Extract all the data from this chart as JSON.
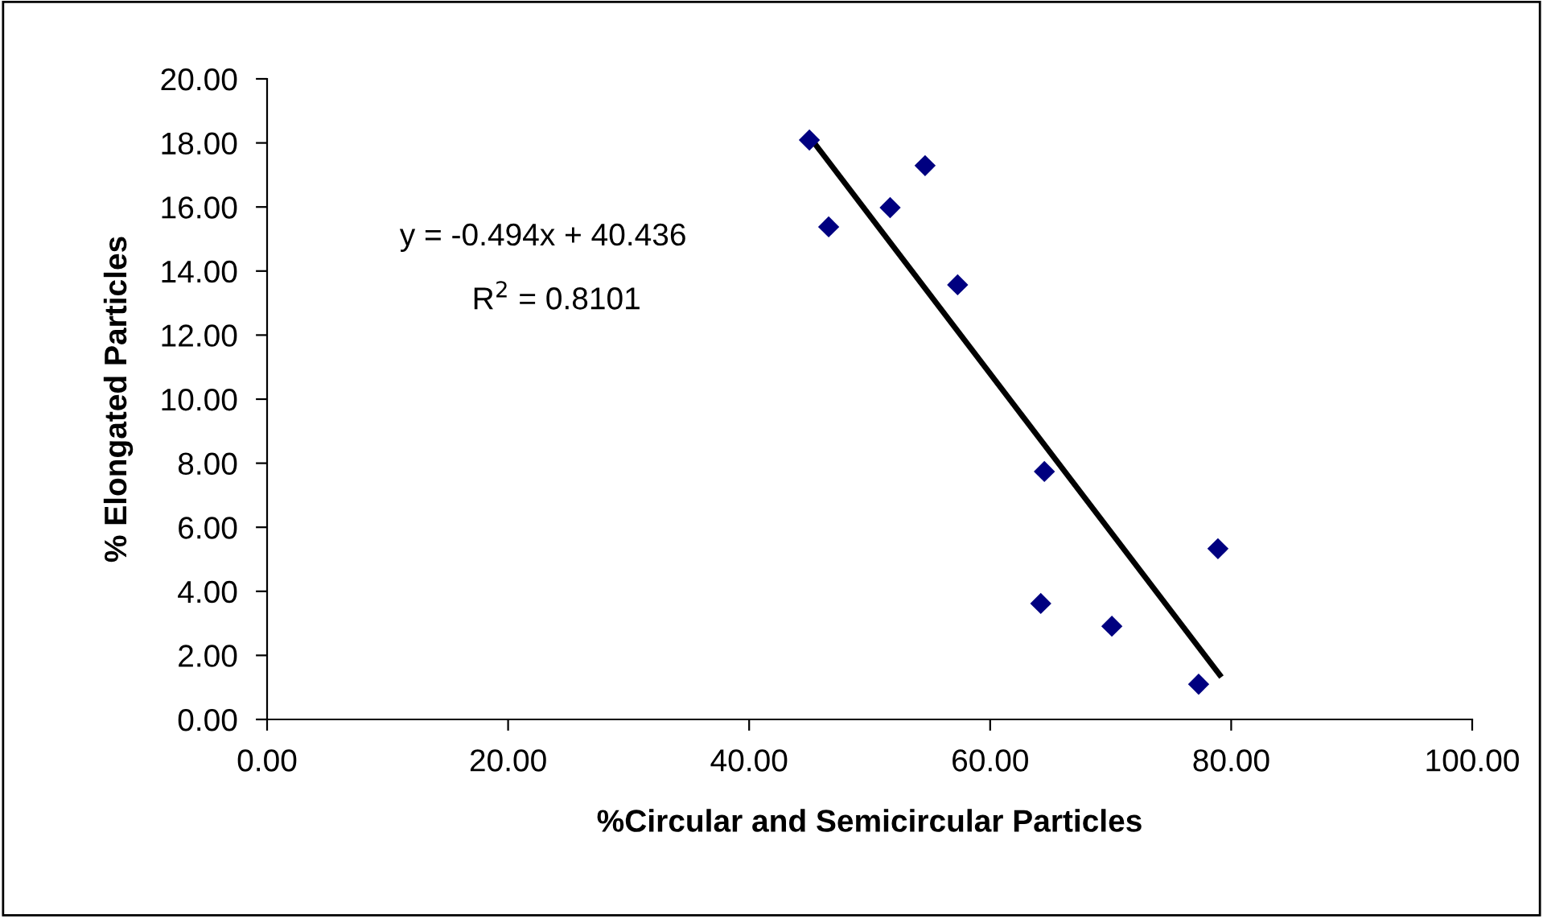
{
  "chart_data": {
    "type": "scatter",
    "xlabel": "%Circular and Semicircular Particles",
    "ylabel": "% Elongated Particles",
    "xlim": [
      0,
      100
    ],
    "ylim": [
      0,
      20
    ],
    "xticks": [
      {
        "value": 0,
        "label": "0.00"
      },
      {
        "value": 20,
        "label": "20.00"
      },
      {
        "value": 40,
        "label": "40.00"
      },
      {
        "value": 60,
        "label": "60.00"
      },
      {
        "value": 80,
        "label": "80.00"
      },
      {
        "value": 100,
        "label": "100.00"
      }
    ],
    "yticks": [
      {
        "value": 0,
        "label": "0.00"
      },
      {
        "value": 2,
        "label": "2.00"
      },
      {
        "value": 4,
        "label": "4.00"
      },
      {
        "value": 6,
        "label": "6.00"
      },
      {
        "value": 8,
        "label": "8.00"
      },
      {
        "value": 10,
        "label": "10.00"
      },
      {
        "value": 12,
        "label": "12.00"
      },
      {
        "value": 14,
        "label": "14.00"
      },
      {
        "value": 16,
        "label": "16.00"
      },
      {
        "value": 18,
        "label": "18.00"
      },
      {
        "value": 20,
        "label": "20.00"
      }
    ],
    "grid": false,
    "legend": false,
    "marker": "diamond",
    "annotations": [
      "y = -0.494x + 40.436",
      "R$^{2}$ = 0.8101"
    ],
    "series": [
      {
        "color": "#000080",
        "x": [
          45.0,
          46.6,
          51.7,
          54.6,
          57.3,
          64.5,
          78.9,
          64.2,
          70.1,
          77.3
        ],
        "values": [
          18.09,
          15.38,
          15.98,
          17.29,
          13.57,
          7.74,
          5.33,
          3.62,
          2.91,
          1.1
        ]
      },
      {
        "type": "line",
        "color": "#000000",
        "marker": "none",
        "line_style": "solid",
        "x": [
          45.0,
          79.05
        ],
        "values": [
          18.2,
          1.39
        ]
      }
    ]
  }
}
